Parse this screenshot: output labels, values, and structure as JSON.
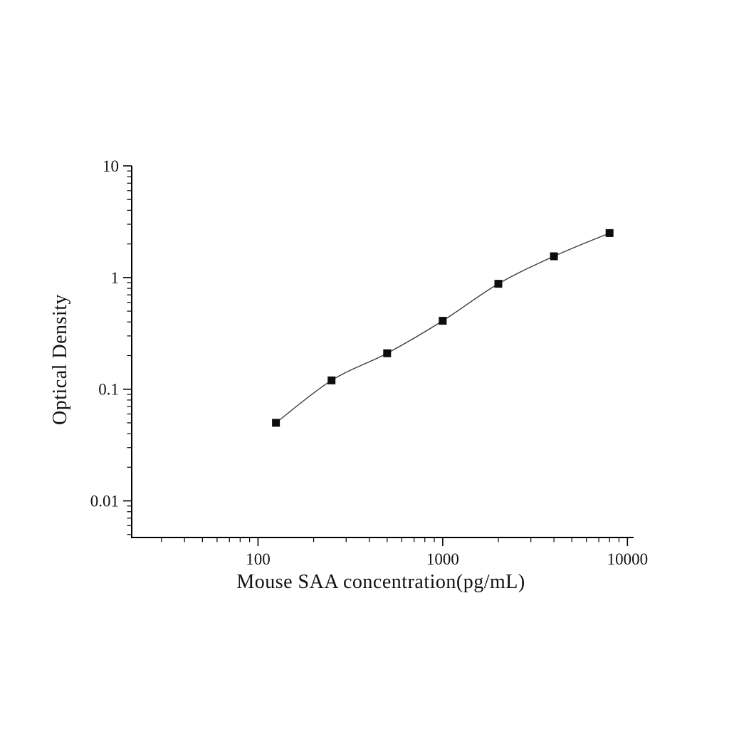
{
  "chart_data": {
    "type": "scatter",
    "title": "",
    "xlabel": "Mouse SAA concentration(pg/mL)",
    "ylabel": "Optical Density",
    "x_scale": "log",
    "y_scale": "log",
    "x": [
      125,
      250,
      500,
      1000,
      2000,
      4000,
      8000
    ],
    "y": [
      0.05,
      0.12,
      0.21,
      0.41,
      0.88,
      1.55,
      2.5
    ],
    "x_ticks": [
      100,
      1000,
      10000
    ],
    "x_tick_labels": [
      "100",
      "1000",
      "10000"
    ],
    "y_ticks": [
      0.01,
      0.1,
      1,
      10
    ],
    "y_tick_labels": [
      "0.01",
      "0.1",
      "1",
      "10"
    ],
    "xlim": [
      20.7,
      10800
    ],
    "ylim": [
      0.0047,
      10
    ],
    "grid": false,
    "marker": "square",
    "marker_color": "#0d0d0d",
    "line_color": "#3c3c3c",
    "axis_color": "#000000",
    "background": "#ffffff",
    "curve": "smooth fit line through standard points"
  }
}
